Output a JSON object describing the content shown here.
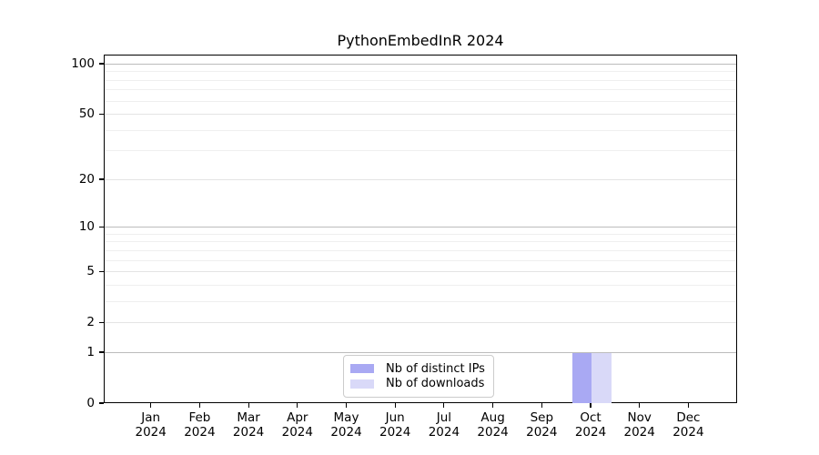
{
  "chart_data": {
    "type": "bar",
    "title": "PythonEmbedInR 2024",
    "categories": [
      "Jan 2024",
      "Feb 2024",
      "Mar 2024",
      "Apr 2024",
      "May 2024",
      "Jun 2024",
      "Jul 2024",
      "Aug 2024",
      "Sep 2024",
      "Oct 2024",
      "Nov 2024",
      "Dec 2024"
    ],
    "series": [
      {
        "name": "Nb of distinct IPs",
        "color": "#a9a9f3",
        "values": [
          0,
          0,
          0,
          0,
          0,
          0,
          0,
          0,
          0,
          1,
          0,
          0
        ]
      },
      {
        "name": "Nb of downloads",
        "color": "#d9d9f8",
        "values": [
          0,
          0,
          0,
          0,
          0,
          0,
          0,
          0,
          0,
          1,
          0,
          0
        ]
      }
    ],
    "yscale": "log1p",
    "ylim": [
      0,
      113
    ],
    "yticks": [
      0,
      1,
      2,
      5,
      10,
      20,
      50,
      100
    ],
    "minor_gridlines": [
      3,
      4,
      6,
      7,
      8,
      9,
      30,
      40,
      60,
      70,
      80,
      90
    ],
    "major_decades": [
      1,
      10,
      100
    ],
    "grid": true,
    "legend_position": "bottom-center",
    "colors": {
      "axis": "#000000",
      "major_grid": "#bcbcbc",
      "labeled_grid": "#e4e4e4",
      "minor_grid": "#efefef",
      "background": "#ffffff"
    }
  }
}
